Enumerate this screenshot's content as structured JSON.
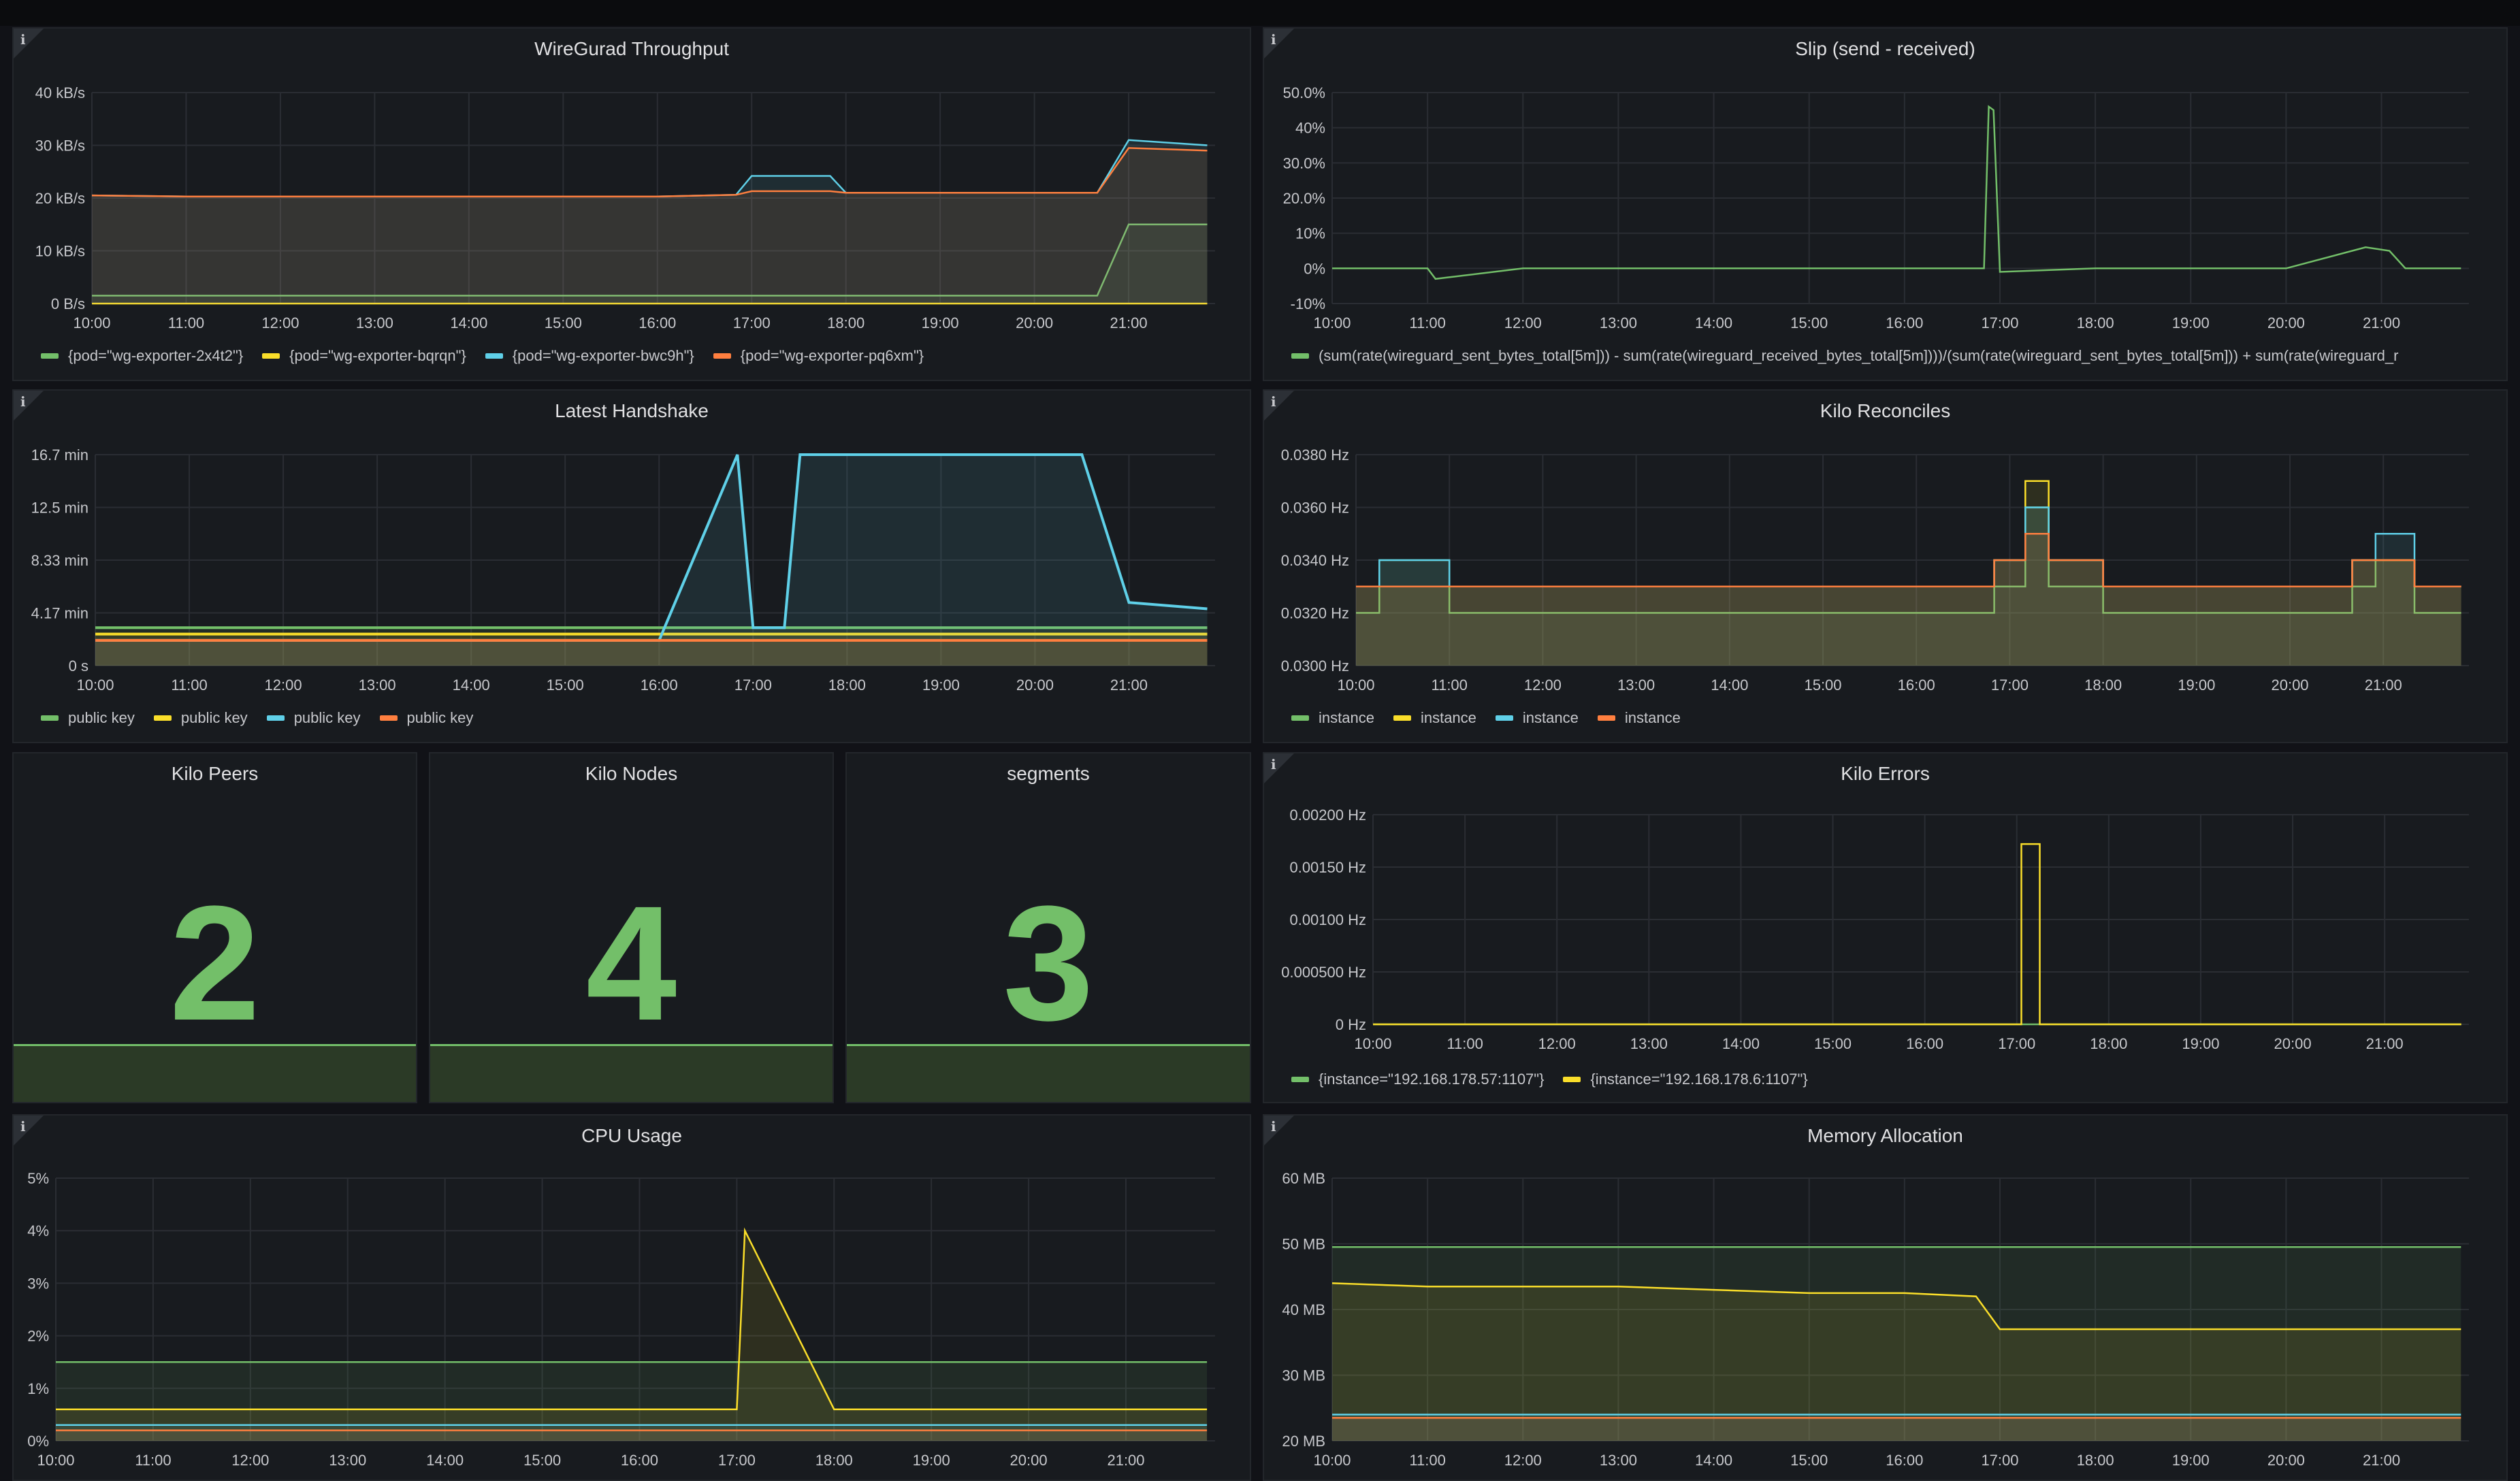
{
  "colors": {
    "green": "#73bf69",
    "yellow": "#fade2a",
    "blue": "#5fd0e8",
    "orange": "#ff7f3f",
    "panel": "#181b1f",
    "grid": "#2a2d33",
    "text": "#c7c8cc"
  },
  "time_ticks": [
    "10:00",
    "11:00",
    "12:00",
    "13:00",
    "14:00",
    "15:00",
    "16:00",
    "17:00",
    "18:00",
    "19:00",
    "20:00",
    "21:00"
  ],
  "panels": {
    "throughput": {
      "title": "WireGurad Throughput",
      "info": "i",
      "y_ticks": [
        "40 kB/s",
        "30 kB/s",
        "20 kB/s",
        "10 kB/s",
        "0 B/s"
      ],
      "legend": [
        {
          "label": "{pod=\"wg-exporter-2x4t2\"}",
          "color": "#73bf69"
        },
        {
          "label": "{pod=\"wg-exporter-bqrqn\"}",
          "color": "#fade2a"
        },
        {
          "label": "{pod=\"wg-exporter-bwc9h\"}",
          "color": "#5fd0e8"
        },
        {
          "label": "{pod=\"wg-exporter-pq6xm\"}",
          "color": "#ff7f3f"
        }
      ]
    },
    "slip": {
      "title": "Slip (send - received)",
      "info": "i",
      "y_ticks": [
        "50.0%",
        "40%",
        "30.0%",
        "20.0%",
        "10%",
        "0%",
        "-10%"
      ],
      "legend": [
        {
          "label": "(sum(rate(wireguard_sent_bytes_total[5m])) - sum(rate(wireguard_received_bytes_total[5m])))/(sum(rate(wireguard_sent_bytes_total[5m])) + sum(rate(wireguard_r",
          "color": "#73bf69"
        }
      ]
    },
    "handshake": {
      "title": "Latest Handshake",
      "info": "i",
      "y_ticks": [
        "16.7 min",
        "12.5 min",
        "8.33 min",
        "4.17 min",
        "0 s"
      ],
      "legend": [
        {
          "label": "public key",
          "color": "#73bf69"
        },
        {
          "label": "public key",
          "color": "#fade2a"
        },
        {
          "label": "public key",
          "color": "#5fd0e8"
        },
        {
          "label": "public key",
          "color": "#ff7f3f"
        }
      ]
    },
    "reconciles": {
      "title": "Kilo Reconciles",
      "info": "i",
      "y_ticks": [
        "0.0380 Hz",
        "0.0360 Hz",
        "0.0340 Hz",
        "0.0320 Hz",
        "0.0300 Hz"
      ],
      "legend": [
        {
          "label": "instance",
          "color": "#73bf69"
        },
        {
          "label": "instance",
          "color": "#fade2a"
        },
        {
          "label": "instance",
          "color": "#5fd0e8"
        },
        {
          "label": "instance",
          "color": "#ff7f3f"
        }
      ]
    },
    "peers": {
      "title": "Kilo Peers",
      "value": "2"
    },
    "nodes": {
      "title": "Kilo Nodes",
      "value": "4"
    },
    "segments": {
      "title": "segments",
      "value": "3"
    },
    "errors": {
      "title": "Kilo Errors",
      "info": "i",
      "y_ticks": [
        "0.00200 Hz",
        "0.00150 Hz",
        "0.00100 Hz",
        "0.000500 Hz",
        "0 Hz"
      ],
      "legend": [
        {
          "label": "{instance=\"192.168.178.57:1107\"}",
          "color": "#73bf69"
        },
        {
          "label": "{instance=\"192.168.178.6:1107\"}",
          "color": "#fade2a"
        }
      ]
    },
    "cpu": {
      "title": "CPU Usage",
      "info": "i",
      "y_ticks": [
        "5%",
        "4%",
        "3%",
        "2%",
        "1%",
        "0%"
      ]
    },
    "memory": {
      "title": "Memory Allocation",
      "info": "i",
      "y_ticks": [
        "60 MB",
        "50 MB",
        "40 MB",
        "30 MB",
        "20 MB"
      ]
    }
  },
  "chart_data": [
    {
      "type": "area",
      "title": "WireGurad Throughput",
      "x": [
        "10:00",
        "11:00",
        "12:00",
        "13:00",
        "14:00",
        "15:00",
        "16:00",
        "16:50",
        "17:00",
        "17:50",
        "18:00",
        "19:00",
        "20:00",
        "20:40",
        "21:00",
        "21:50"
      ],
      "ylim": [
        0,
        40
      ],
      "ylabel": "kB/s",
      "series": [
        {
          "name": "{pod=\"wg-exporter-2x4t2\"}",
          "values": [
            1.5,
            1.5,
            1.5,
            1.5,
            1.5,
            1.5,
            1.5,
            1.5,
            1.5,
            1.5,
            1.5,
            1.5,
            1.5,
            1.5,
            15,
            15
          ]
        },
        {
          "name": "{pod=\"wg-exporter-bqrqn\"}",
          "values": [
            0,
            0,
            0,
            0,
            0,
            0,
            0,
            0,
            0,
            0,
            0,
            0,
            0,
            0,
            0,
            0
          ]
        },
        {
          "name": "{pod=\"wg-exporter-bwc9h\"}",
          "values": [
            20.5,
            20.3,
            20.3,
            20.3,
            20.3,
            20.3,
            20.3,
            20.6,
            24.2,
            24.2,
            21,
            21,
            21,
            21,
            31,
            30
          ]
        },
        {
          "name": "{pod=\"wg-exporter-pq6xm\"}",
          "values": [
            20.5,
            20.3,
            20.3,
            20.3,
            20.3,
            20.3,
            20.3,
            20.6,
            21.3,
            21.3,
            21,
            21,
            21,
            21,
            29.5,
            29
          ]
        }
      ]
    },
    {
      "type": "line",
      "title": "Slip (send - received)",
      "x": [
        "10:00",
        "11:00",
        "11:05",
        "12:00",
        "13:00",
        "14:00",
        "15:00",
        "16:00",
        "16:50",
        "16:53",
        "16:56",
        "17:00",
        "18:00",
        "19:00",
        "20:00",
        "20:50",
        "21:05",
        "21:15",
        "21:50"
      ],
      "ylim": [
        -10,
        50
      ],
      "series": [
        {
          "name": "(sum(rate(wireguard_sent_bytes_total[5m])) - sum(rate(wireguard_received_bytes_total[5m])))/(sum(rate(wireguard_sent_bytes_total[5m])) + sum(rate(wireguard_r",
          "values": [
            0,
            0,
            -3,
            0,
            0,
            0,
            0,
            0,
            0,
            46,
            45,
            -1,
            0,
            0,
            0,
            6,
            5,
            0,
            0
          ]
        }
      ]
    },
    {
      "type": "line",
      "title": "Latest Handshake",
      "x": [
        "10:00",
        "11:00",
        "12:00",
        "13:00",
        "14:00",
        "15:00",
        "16:00",
        "16:50",
        "17:00",
        "17:20",
        "17:30",
        "18:00",
        "19:00",
        "20:00",
        "20:30",
        "21:00",
        "21:50"
      ],
      "ylim": [
        0,
        16.7
      ],
      "ylabel": "min",
      "series": [
        {
          "name": "public key",
          "values": [
            3,
            3,
            3,
            3,
            3,
            3,
            3,
            3,
            3,
            3,
            3,
            3,
            3,
            3,
            3,
            3,
            3
          ]
        },
        {
          "name": "public key",
          "values": [
            2.5,
            2.5,
            2.5,
            2.5,
            2.5,
            2.5,
            2.5,
            2.5,
            2.5,
            2.5,
            2.5,
            2.5,
            2.5,
            2.5,
            2.5,
            2.5,
            2.5
          ]
        },
        {
          "name": "public key",
          "values": [
            2,
            2,
            2,
            2,
            2,
            2,
            2,
            16.7,
            3,
            3,
            16.7,
            16.7,
            16.7,
            16.7,
            16.7,
            5,
            4.5
          ]
        },
        {
          "name": "public key",
          "values": [
            2,
            2,
            2,
            2,
            2,
            2,
            2,
            2,
            2,
            2,
            2,
            2,
            2,
            2,
            2,
            2,
            2
          ]
        }
      ]
    },
    {
      "type": "line",
      "title": "Kilo Reconciles",
      "x": [
        "10:00",
        "10:15",
        "11:00",
        "12:00",
        "13:00",
        "14:00",
        "15:00",
        "16:00",
        "16:50",
        "17:10",
        "17:25",
        "18:00",
        "19:00",
        "20:00",
        "20:40",
        "20:55",
        "21:20",
        "21:50"
      ],
      "ylim": [
        0.03,
        0.038
      ],
      "ylabel": "Hz",
      "series": [
        {
          "name": "instance",
          "values": [
            0.032,
            0.034,
            0.032,
            0.032,
            0.032,
            0.032,
            0.032,
            0.032,
            0.033,
            0.036,
            0.033,
            0.032,
            0.032,
            0.032,
            0.033,
            0.034,
            0.032,
            0.032
          ]
        },
        {
          "name": "instance",
          "values": [
            0.033,
            0.033,
            0.033,
            0.033,
            0.033,
            0.033,
            0.033,
            0.033,
            0.034,
            0.037,
            0.034,
            0.033,
            0.033,
            0.033,
            0.034,
            0.034,
            0.033,
            0.033
          ]
        },
        {
          "name": "instance",
          "values": [
            0.033,
            0.034,
            0.033,
            0.033,
            0.033,
            0.033,
            0.033,
            0.033,
            0.034,
            0.036,
            0.034,
            0.033,
            0.033,
            0.033,
            0.034,
            0.035,
            0.033,
            0.033
          ]
        },
        {
          "name": "instance",
          "values": [
            0.033,
            0.033,
            0.033,
            0.033,
            0.033,
            0.033,
            0.033,
            0.033,
            0.034,
            0.035,
            0.034,
            0.033,
            0.033,
            0.033,
            0.034,
            0.034,
            0.033,
            0.033
          ]
        }
      ]
    },
    {
      "type": "line",
      "title": "Kilo Errors",
      "x": [
        "10:00",
        "11:00",
        "12:00",
        "13:00",
        "14:00",
        "15:00",
        "16:00",
        "17:00",
        "17:03",
        "17:12",
        "17:15",
        "18:00",
        "19:00",
        "20:00",
        "21:00",
        "21:50"
      ],
      "ylim": [
        0,
        0.002
      ],
      "ylabel": "Hz",
      "series": [
        {
          "name": "{instance=\"192.168.178.57:1107\"}",
          "values": [
            0,
            0,
            0,
            0,
            0,
            0,
            0,
            0,
            0,
            0,
            0,
            0,
            0,
            0,
            0,
            0
          ]
        },
        {
          "name": "{instance=\"192.168.178.6:1107\"}",
          "values": [
            0,
            0,
            0,
            0,
            0,
            0,
            0,
            0,
            0.00172,
            0.00172,
            0,
            0,
            0,
            0,
            0,
            0
          ]
        }
      ]
    },
    {
      "type": "line",
      "title": "CPU Usage",
      "x": [
        "10:00",
        "11:00",
        "12:00",
        "13:00",
        "14:00",
        "15:00",
        "16:00",
        "17:00",
        "17:05",
        "18:00",
        "19:00",
        "20:00",
        "21:00",
        "21:50"
      ],
      "ylim": [
        0,
        5
      ],
      "ylabel": "%",
      "series": [
        {
          "values": [
            1.5,
            1.5,
            1.5,
            1.5,
            1.5,
            1.5,
            1.5,
            1.5,
            1.5,
            1.5,
            1.5,
            1.5,
            1.5,
            1.5
          ]
        },
        {
          "values": [
            0.6,
            0.6,
            0.6,
            0.6,
            0.6,
            0.6,
            0.6,
            0.6,
            4,
            0.6,
            0.6,
            0.6,
            0.6,
            0.6
          ]
        },
        {
          "values": [
            0.3,
            0.3,
            0.3,
            0.3,
            0.3,
            0.3,
            0.3,
            0.3,
            0.3,
            0.3,
            0.3,
            0.3,
            0.3,
            0.3
          ]
        },
        {
          "values": [
            0.2,
            0.2,
            0.2,
            0.2,
            0.2,
            0.2,
            0.2,
            0.2,
            0.2,
            0.2,
            0.2,
            0.2,
            0.2,
            0.2
          ]
        }
      ]
    },
    {
      "type": "line",
      "title": "Memory Allocation",
      "x": [
        "10:00",
        "11:00",
        "12:00",
        "13:00",
        "14:00",
        "15:00",
        "16:00",
        "16:45",
        "17:00",
        "18:00",
        "19:00",
        "20:00",
        "21:00",
        "21:50"
      ],
      "ylim": [
        20,
        60
      ],
      "ylabel": "MB",
      "series": [
        {
          "values": [
            49.5,
            49.5,
            49.5,
            49.5,
            49.5,
            49.5,
            49.5,
            49.5,
            49.5,
            49.5,
            49.5,
            49.5,
            49.5,
            49.5
          ]
        },
        {
          "values": [
            44,
            43.5,
            43.5,
            43.5,
            43,
            42.5,
            42.5,
            42,
            37,
            37,
            37,
            37,
            37,
            37
          ]
        },
        {
          "values": [
            24,
            24,
            24,
            24,
            24,
            24,
            24,
            24,
            24,
            24,
            24,
            24,
            24,
            24
          ]
        },
        {
          "values": [
            23.5,
            23.5,
            23.5,
            23.5,
            23.5,
            23.5,
            23.5,
            23.5,
            23.5,
            23.5,
            23.5,
            23.5,
            23.5,
            23.5
          ]
        }
      ]
    }
  ]
}
